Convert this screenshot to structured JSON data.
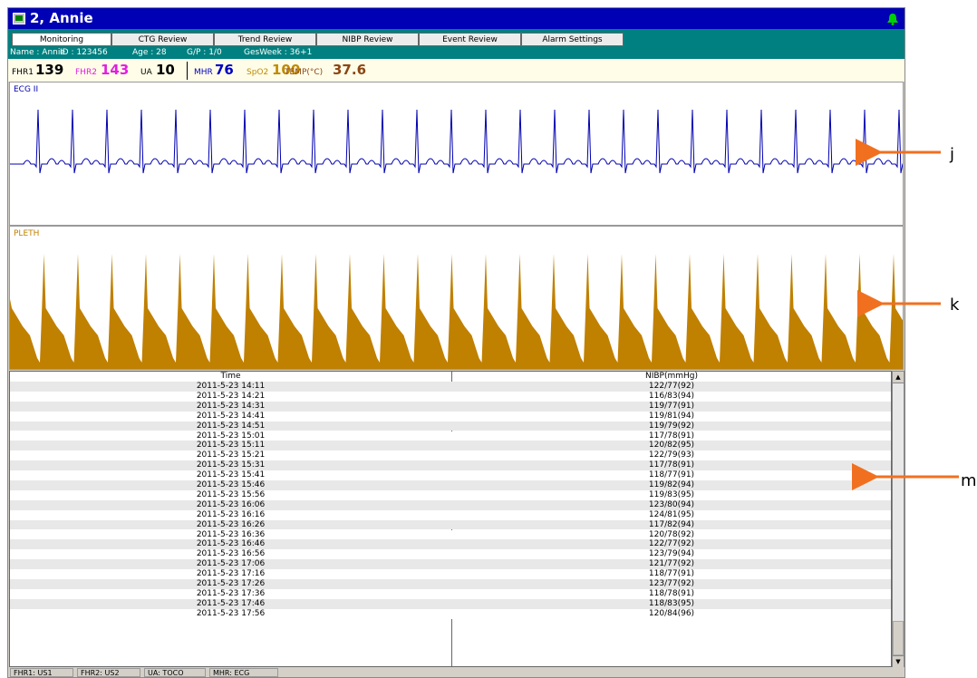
{
  "window": {
    "title": "2, Annie"
  },
  "tabs": [
    "Monitoring",
    "CTG Review",
    "Trend Review",
    "NIBP Review",
    "Event Review",
    "Alarm Settings"
  ],
  "patient_info": [
    "Name : Annie",
    "ID : 123456",
    "Age : 28",
    "G/P : 1/0",
    "GesWeek : 36+1"
  ],
  "parameters": [
    {
      "label": "FHR1",
      "value": "139"
    },
    {
      "label": "FHR2",
      "value": "143"
    },
    {
      "label": "UA",
      "value": "10"
    },
    {
      "label": "MHR",
      "value": "76"
    },
    {
      "label": "SpO2",
      "value": "100"
    },
    {
      "label": "TEMP(°C)",
      "value": "37.6"
    }
  ],
  "panels": {
    "ecg": "ECG  II",
    "pleth": "PLETH"
  },
  "table": {
    "headers": [
      "Time",
      "NIBP(mmHg)"
    ],
    "rows": [
      [
        "2011-5-23 14:11",
        "122/77(92)"
      ],
      [
        "2011-5-23 14:21",
        "116/83(94)"
      ],
      [
        "2011-5-23 14:31",
        "119/77(91)"
      ],
      [
        "2011-5-23 14:41",
        "119/81(94)"
      ],
      [
        "2011-5-23 14:51",
        "119/79(92)"
      ],
      [
        "2011-5-23 15:01",
        "117/78(91)"
      ],
      [
        "2011-5-23 15:11",
        "120/82(95)"
      ],
      [
        "2011-5-23 15:21",
        "122/79(93)"
      ],
      [
        "2011-5-23 15:31",
        "117/78(91)"
      ],
      [
        "2011-5-23 15:41",
        "118/77(91)"
      ],
      [
        "2011-5-23 15:46",
        "119/82(94)"
      ],
      [
        "2011-5-23 15:56",
        "119/83(95)"
      ],
      [
        "2011-5-23 16:06",
        "123/80(94)"
      ],
      [
        "2011-5-23 16:16",
        "124/81(95)"
      ],
      [
        "2011-5-23 16:26",
        "117/82(94)"
      ],
      [
        "2011-5-23 16:36",
        "120/78(92)"
      ],
      [
        "2011-5-23 16:46",
        "122/77(92)"
      ],
      [
        "2011-5-23 16:56",
        "123/79(94)"
      ],
      [
        "2011-5-23 17:06",
        "121/77(92)"
      ],
      [
        "2011-5-23 17:16",
        "118/77(91)"
      ],
      [
        "2011-5-23 17:26",
        "123/77(92)"
      ],
      [
        "2011-5-23 17:36",
        "118/78(91)"
      ],
      [
        "2011-5-23 17:46",
        "118/83(95)"
      ],
      [
        "2011-5-23 17:56",
        "120/84(96)"
      ]
    ]
  },
  "status_bar": [
    "FHR1: US1",
    "FHR2: US2",
    "UA: TOCO",
    "MHR: ECG"
  ],
  "annotations": [
    "j",
    "k",
    "m"
  ]
}
